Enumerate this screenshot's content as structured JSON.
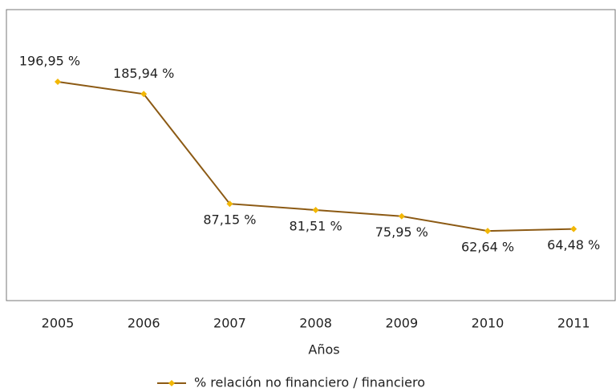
{
  "chart_data": {
    "type": "line",
    "x_label": "Años",
    "categories": [
      "2005",
      "2006",
      "2007",
      "2008",
      "2009",
      "2010",
      "2011"
    ],
    "series": [
      {
        "name": "% relación no financiero / financiero",
        "color": "#8c5a14",
        "marker_color": "#f2b705",
        "values": [
          196.95,
          185.94,
          87.15,
          81.51,
          75.95,
          62.64,
          64.48
        ],
        "value_labels": [
          "196,95 %",
          "185,94 %",
          "87,15 %",
          "81,51 %",
          "75,95 %",
          "62,64 %",
          "64,48 %"
        ]
      }
    ],
    "legend": "bottom"
  }
}
